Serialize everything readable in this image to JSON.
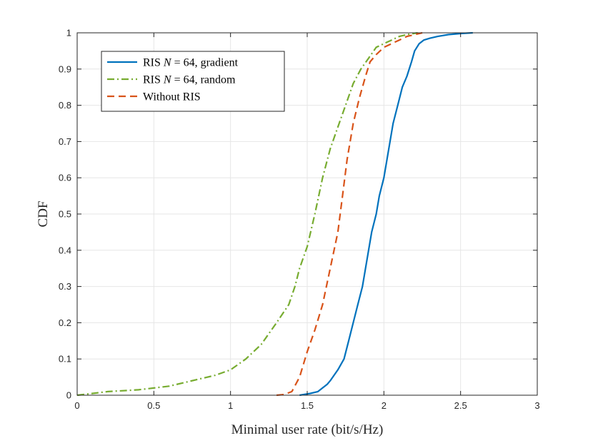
{
  "chart_data": {
    "type": "line",
    "title": "",
    "xlabel": "Minimal user rate (bit/s/Hz)",
    "ylabel": "CDF",
    "xlim": [
      0,
      3
    ],
    "ylim": [
      0,
      1
    ],
    "x_ticks": [
      0,
      0.5,
      1,
      1.5,
      2,
      2.5,
      3
    ],
    "y_ticks": [
      0,
      0.1,
      0.2,
      0.3,
      0.4,
      0.5,
      0.6,
      0.7,
      0.8,
      0.9,
      1
    ],
    "x_tick_labels": [
      "0",
      "0.5",
      "1",
      "1.5",
      "2",
      "2.5",
      "3"
    ],
    "y_tick_labels": [
      "0",
      "0.1",
      "0.2",
      "0.3",
      "0.4",
      "0.5",
      "0.6",
      "0.7",
      "0.8",
      "0.9",
      "1"
    ],
    "grid": true,
    "legend_position": "top-left",
    "series": [
      {
        "name": "RIS N = 64, gradient",
        "legend_parts": [
          "RIS ",
          "N",
          " = 64, gradient"
        ],
        "color": "#0072BD",
        "style": "solid",
        "x": [
          1.45,
          1.52,
          1.57,
          1.6,
          1.63,
          1.65,
          1.7,
          1.74,
          1.77,
          1.8,
          1.83,
          1.86,
          1.88,
          1.9,
          1.92,
          1.95,
          1.97,
          2.0,
          2.02,
          2.04,
          2.06,
          2.09,
          2.12,
          2.15,
          2.18,
          2.2,
          2.23,
          2.26,
          2.3,
          2.35,
          2.42,
          2.5,
          2.58
        ],
        "y": [
          0.0,
          0.005,
          0.01,
          0.02,
          0.03,
          0.04,
          0.07,
          0.1,
          0.15,
          0.2,
          0.25,
          0.3,
          0.35,
          0.4,
          0.45,
          0.5,
          0.55,
          0.6,
          0.65,
          0.7,
          0.75,
          0.8,
          0.85,
          0.88,
          0.92,
          0.95,
          0.97,
          0.98,
          0.985,
          0.99,
          0.995,
          0.998,
          1.0
        ]
      },
      {
        "name": "RIS N = 64, random",
        "legend_parts": [
          "RIS ",
          "N",
          " = 64, random"
        ],
        "color": "#77AC30",
        "style": "dashdot",
        "x": [
          0.0,
          0.1,
          0.2,
          0.4,
          0.6,
          0.7,
          0.8,
          0.9,
          1.0,
          1.1,
          1.2,
          1.3,
          1.38,
          1.42,
          1.45,
          1.5,
          1.55,
          1.6,
          1.65,
          1.7,
          1.75,
          1.8,
          1.85,
          1.9,
          1.95,
          2.0,
          2.05,
          2.1,
          2.15,
          2.22
        ],
        "y": [
          0.0,
          0.005,
          0.01,
          0.015,
          0.025,
          0.035,
          0.045,
          0.055,
          0.07,
          0.1,
          0.14,
          0.2,
          0.25,
          0.3,
          0.35,
          0.41,
          0.5,
          0.6,
          0.68,
          0.74,
          0.8,
          0.86,
          0.9,
          0.93,
          0.96,
          0.97,
          0.98,
          0.99,
          0.995,
          1.0
        ]
      },
      {
        "name": "Without RIS",
        "legend_parts": [
          "Without RIS"
        ],
        "color": "#D95319",
        "style": "dashed",
        "x": [
          1.3,
          1.35,
          1.4,
          1.45,
          1.5,
          1.55,
          1.6,
          1.65,
          1.7,
          1.73,
          1.76,
          1.8,
          1.84,
          1.88,
          1.91,
          1.95,
          2.0,
          2.05,
          2.1,
          2.15,
          2.2,
          2.25
        ],
        "y": [
          0.0,
          0.002,
          0.01,
          0.05,
          0.12,
          0.18,
          0.25,
          0.35,
          0.45,
          0.55,
          0.65,
          0.75,
          0.82,
          0.88,
          0.92,
          0.94,
          0.96,
          0.97,
          0.98,
          0.99,
          0.995,
          1.0
        ]
      }
    ]
  }
}
